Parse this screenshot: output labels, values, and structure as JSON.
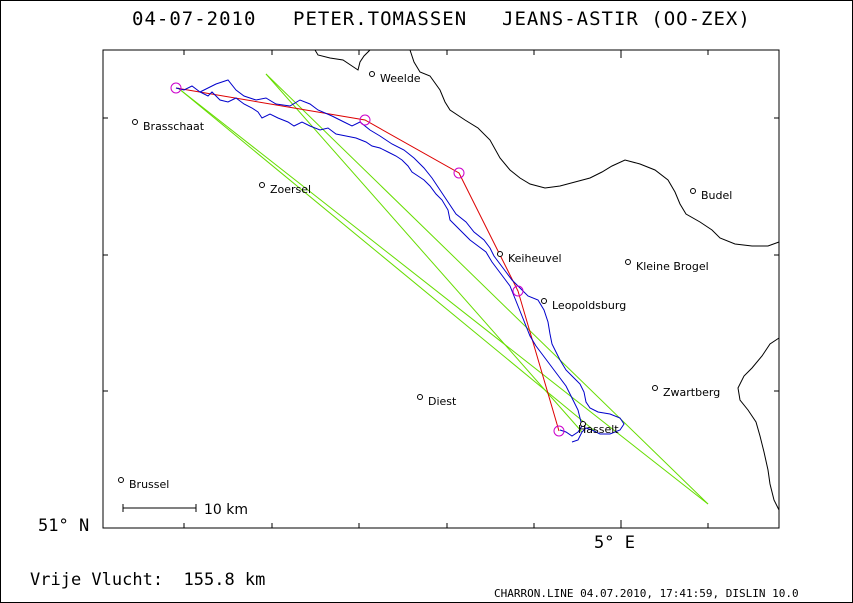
{
  "header": {
    "date": "04-07-2010",
    "pilot": "PETER.TOMASSEN",
    "glider": "JEANS-ASTIR (OO-ZEX)"
  },
  "axes": {
    "lat_label": "51° N",
    "lon_label": "5° E"
  },
  "scale_bar": {
    "label": "10 km"
  },
  "footer": {
    "flight_label": "Vrije Vlucht:  155.8 km",
    "credit": "CHARRON.LINE 04.07.2010, 17:41:59, DISLIN 10.0"
  },
  "places": [
    {
      "name": "Weelde"
    },
    {
      "name": "Brasschaat"
    },
    {
      "name": "Zoersel"
    },
    {
      "name": "Budel"
    },
    {
      "name": "Keiheuvel"
    },
    {
      "name": "Kleine Brogel"
    },
    {
      "name": "Leopoldsburg"
    },
    {
      "name": "Zwartberg"
    },
    {
      "name": "Diest"
    },
    {
      "name": "Hasselt"
    },
    {
      "name": "Brussel"
    }
  ],
  "colors": {
    "border": "#000000",
    "track": "#0000cc",
    "task": "#dd0000",
    "turnpoint": "#cc00cc",
    "rays": "#66dd00"
  }
}
